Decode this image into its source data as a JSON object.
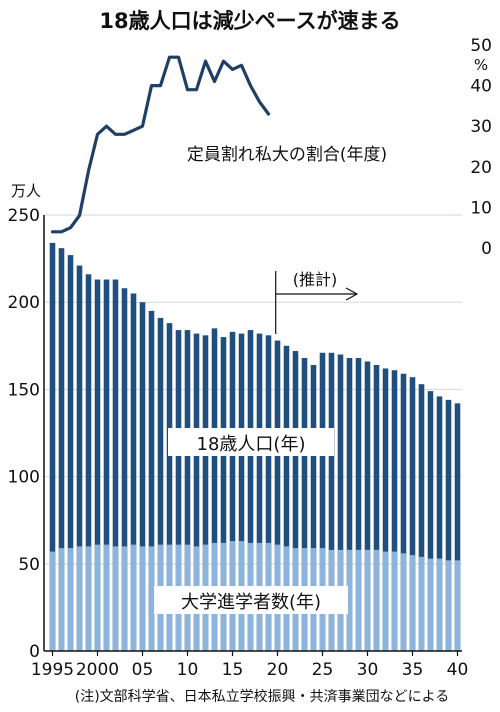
{
  "chart_data": {
    "type": "bar",
    "title": "18歳人口は減少ペースが速まる",
    "note": "(注)文部科学省、日本私立学校振興・共済事業団などによる",
    "x": [
      1995,
      1996,
      1997,
      1998,
      1999,
      2000,
      2001,
      2002,
      2003,
      2004,
      2005,
      2006,
      2007,
      2008,
      2009,
      2010,
      2011,
      2012,
      2013,
      2014,
      2015,
      2016,
      2017,
      2018,
      2019,
      2020,
      2021,
      2022,
      2023,
      2024,
      2025,
      2026,
      2027,
      2028,
      2029,
      2030,
      2031,
      2032,
      2033,
      2034,
      2035,
      2036,
      2037,
      2038,
      2039,
      2040
    ],
    "x_tick_labels": [
      "1995",
      "2000",
      "05",
      "10",
      "15",
      "20",
      "25",
      "30",
      "35",
      "40"
    ],
    "left_axis": {
      "unit": "万人",
      "ticks": [
        "0",
        "50",
        "100",
        "150",
        "200",
        "250"
      ],
      "ylim": [
        0,
        250
      ]
    },
    "right_axis": {
      "unit": "%",
      "ticks": [
        "0",
        "10",
        "20",
        "30",
        "40",
        "50"
      ],
      "ylim": [
        0,
        50
      ]
    },
    "series": [
      {
        "name": "18歳人口(年)",
        "kind": "bar",
        "color": "#1f4e7f",
        "values": [
          234,
          231,
          227,
          221,
          216,
          213,
          213,
          213,
          208,
          205,
          200,
          195,
          191,
          188,
          184,
          184,
          182,
          181,
          185,
          180,
          183,
          182,
          184,
          182,
          181,
          178,
          175,
          172,
          168,
          164,
          171,
          171,
          170,
          168,
          168,
          166,
          164,
          162,
          161,
          159,
          157,
          153,
          149,
          146,
          144,
          142
        ]
      },
      {
        "name": "大学進学者数(年)",
        "kind": "bar",
        "color": "#8cb4dc",
        "values": [
          57,
          59,
          59,
          60,
          60,
          61,
          61,
          60,
          60,
          61,
          60,
          60,
          61,
          61,
          61,
          61,
          60,
          61,
          62,
          62,
          63,
          63,
          62,
          62,
          62,
          61,
          60,
          59,
          59,
          59,
          59,
          58,
          58,
          58,
          58,
          58,
          58,
          57,
          57,
          56,
          55,
          54,
          53,
          53,
          52,
          52
        ]
      },
      {
        "name": "定員割れ私大の割合(年度)",
        "kind": "line",
        "axis": "right",
        "color": "#1f3f66",
        "x": [
          1995,
          1996,
          1997,
          1998,
          1999,
          2000,
          2001,
          2002,
          2003,
          2004,
          2005,
          2006,
          2007,
          2008,
          2009,
          2010,
          2011,
          2012,
          2013,
          2014,
          2015,
          2016,
          2017,
          2018,
          2019
        ],
        "values": [
          4,
          4,
          5,
          8,
          19,
          28,
          30,
          28,
          28,
          29,
          30,
          40,
          40,
          47,
          47,
          39,
          39,
          46,
          41,
          46,
          44,
          45,
          40,
          36,
          33
        ]
      }
    ],
    "annotation": {
      "label": "(推計)",
      "from_year": 2019
    }
  }
}
